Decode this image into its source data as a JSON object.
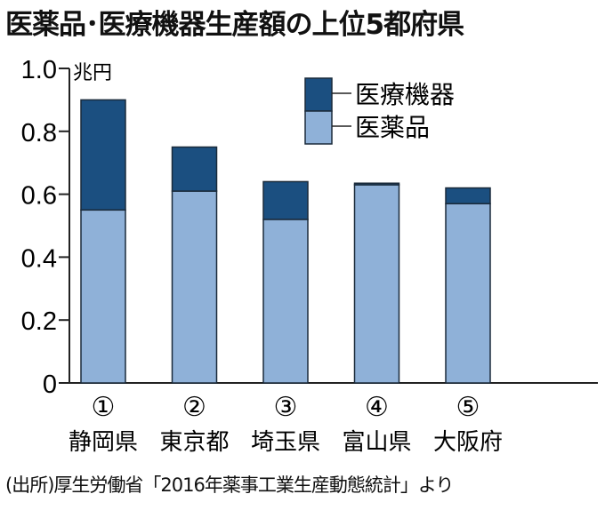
{
  "chart_data": {
    "type": "bar",
    "stacked": true,
    "title": "医薬品･医療機器生産額の上位5都府県",
    "ylabel": "兆円",
    "ylim": [
      0,
      1.0
    ],
    "yticks": [
      "0",
      "0.2",
      "0.4",
      "0.6",
      "0.8",
      "1.0"
    ],
    "categories": [
      "静岡県",
      "東京都",
      "埼玉県",
      "富山県",
      "大阪府"
    ],
    "ranks": [
      "①",
      "②",
      "③",
      "④",
      "⑤"
    ],
    "series": [
      {
        "name": "医薬品",
        "color": "#8fb1d8",
        "values": [
          0.55,
          0.61,
          0.52,
          0.63,
          0.57
        ]
      },
      {
        "name": "医療機器",
        "color": "#1b4f80",
        "values": [
          0.35,
          0.14,
          0.12,
          0.005,
          0.05
        ]
      }
    ],
    "legend_position": "top-right",
    "source": "(出所)厚生労働省「2016年薬事工業生産動態統計」より"
  }
}
